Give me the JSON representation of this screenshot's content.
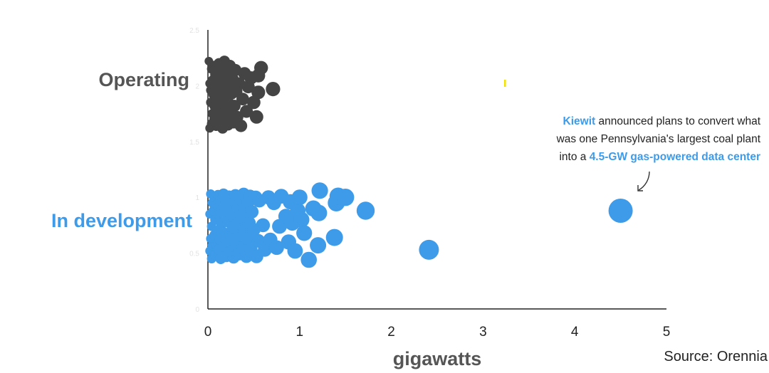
{
  "chart_data": {
    "type": "scatter",
    "title": "",
    "xlabel": "gigawatts",
    "xlim": [
      0,
      5
    ],
    "ylim": [
      0,
      2.5
    ],
    "x_ticks": [
      "0",
      "1",
      "2",
      "3",
      "4",
      "5"
    ],
    "y_ticks": [
      "0",
      "0.5",
      "1",
      "1.5",
      "2",
      "2.5"
    ],
    "grid": false,
    "source": "Source: Orennia",
    "colors": {
      "Operating": "#444444",
      "In development": "#3d9be9",
      "annotation_highlight": "#3d9be9"
    },
    "annotation": {
      "line1_highlight": "Kiewit",
      "line1_rest": " announced plans to convert what",
      "line2": "was one Pennsylvania's largest coal plant",
      "line3_prefix": "into a ",
      "line3_highlight": "4.5-GW gas-powered data center",
      "points_to": {
        "x": 4.5,
        "y": 0.88
      }
    },
    "series": [
      {
        "name": "Operating",
        "points": [
          [
            0.01,
            2.22
          ],
          [
            0.02,
            2.02
          ],
          [
            0.02,
            1.62
          ],
          [
            0.03,
            1.85
          ],
          [
            0.03,
            1.96
          ],
          [
            0.04,
            2.15
          ],
          [
            0.04,
            1.66
          ],
          [
            0.05,
            2.05
          ],
          [
            0.05,
            1.75
          ],
          [
            0.06,
            1.92
          ],
          [
            0.06,
            2.18
          ],
          [
            0.07,
            1.7
          ],
          [
            0.07,
            1.82
          ],
          [
            0.08,
            1.99
          ],
          [
            0.08,
            2.1
          ],
          [
            0.09,
            1.64
          ],
          [
            0.09,
            1.89
          ],
          [
            0.1,
            2.13
          ],
          [
            0.1,
            1.78
          ],
          [
            0.11,
            1.95
          ],
          [
            0.12,
            2.2
          ],
          [
            0.12,
            1.68
          ],
          [
            0.13,
            1.86
          ],
          [
            0.13,
            2.03
          ],
          [
            0.14,
            1.73
          ],
          [
            0.15,
            2.16
          ],
          [
            0.15,
            1.92
          ],
          [
            0.16,
            1.62
          ],
          [
            0.17,
            2.08
          ],
          [
            0.17,
            1.8
          ],
          [
            0.18,
            2.22
          ],
          [
            0.19,
            1.97
          ],
          [
            0.19,
            1.7
          ],
          [
            0.2,
            1.88
          ],
          [
            0.21,
            2.12
          ],
          [
            0.22,
            1.65
          ],
          [
            0.22,
            2.0
          ],
          [
            0.23,
            1.84
          ],
          [
            0.24,
            2.18
          ],
          [
            0.25,
            1.74
          ],
          [
            0.26,
            1.93
          ],
          [
            0.27,
            2.06
          ],
          [
            0.28,
            1.67
          ],
          [
            0.29,
            1.82
          ],
          [
            0.3,
            2.14
          ],
          [
            0.31,
            1.95
          ],
          [
            0.32,
            1.72
          ],
          [
            0.34,
            2.02
          ],
          [
            0.36,
            1.64
          ],
          [
            0.38,
            1.88
          ],
          [
            0.4,
            2.11
          ],
          [
            0.42,
            1.77
          ],
          [
            0.44,
            1.99
          ],
          [
            0.47,
            2.07
          ],
          [
            0.5,
            1.85
          ],
          [
            0.53,
            1.72
          ],
          [
            0.55,
            1.94
          ],
          [
            0.58,
            2.16
          ],
          [
            0.55,
            2.09
          ],
          [
            0.71,
            1.97
          ]
        ]
      },
      {
        "name": "In development",
        "points": [
          [
            0.02,
            0.52
          ],
          [
            0.02,
            0.85
          ],
          [
            0.03,
            0.63
          ],
          [
            0.03,
            1.03
          ],
          [
            0.04,
            0.45
          ],
          [
            0.04,
            0.74
          ],
          [
            0.05,
            0.95
          ],
          [
            0.05,
            0.57
          ],
          [
            0.06,
            0.88
          ],
          [
            0.07,
            0.66
          ],
          [
            0.07,
            1.0
          ],
          [
            0.08,
            0.48
          ],
          [
            0.08,
            0.8
          ],
          [
            0.09,
            0.58
          ],
          [
            0.1,
            0.93
          ],
          [
            0.1,
            0.7
          ],
          [
            0.11,
            1.02
          ],
          [
            0.12,
            0.53
          ],
          [
            0.12,
            0.84
          ],
          [
            0.13,
            0.62
          ],
          [
            0.14,
            0.97
          ],
          [
            0.14,
            0.45
          ],
          [
            0.15,
            0.76
          ],
          [
            0.16,
            0.9
          ],
          [
            0.17,
            0.56
          ],
          [
            0.17,
            1.03
          ],
          [
            0.18,
            0.68
          ],
          [
            0.19,
            0.83
          ],
          [
            0.2,
            0.47
          ],
          [
            0.2,
            0.96
          ],
          [
            0.21,
            0.6
          ],
          [
            0.22,
            0.78
          ],
          [
            0.23,
            1.01
          ],
          [
            0.24,
            0.51
          ],
          [
            0.24,
            0.88
          ],
          [
            0.25,
            0.65
          ],
          [
            0.26,
            0.94
          ],
          [
            0.27,
            0.73
          ],
          [
            0.28,
            0.46
          ],
          [
            0.29,
            0.85
          ],
          [
            0.3,
            1.02
          ],
          [
            0.31,
            0.58
          ],
          [
            0.32,
            0.76
          ],
          [
            0.33,
            0.91
          ],
          [
            0.34,
            0.49
          ],
          [
            0.35,
            0.66
          ],
          [
            0.36,
            0.98
          ],
          [
            0.37,
            0.82
          ],
          [
            0.38,
            0.55
          ],
          [
            0.39,
            1.03
          ],
          [
            0.4,
            0.7
          ],
          [
            0.41,
            0.89
          ],
          [
            0.42,
            0.47
          ],
          [
            0.43,
            0.63
          ],
          [
            0.44,
            0.96
          ],
          [
            0.45,
            0.77
          ],
          [
            0.46,
            1.01
          ],
          [
            0.47,
            0.53
          ],
          [
            0.48,
            0.87
          ],
          [
            0.5,
            0.71
          ],
          [
            0.52,
            1.0
          ],
          [
            0.53,
            0.47
          ],
          [
            0.55,
            0.61
          ],
          [
            0.56,
            0.97
          ],
          [
            0.6,
            0.75
          ],
          [
            0.62,
            0.53
          ],
          [
            0.66,
            1.0
          ],
          [
            0.68,
            0.62
          ],
          [
            0.72,
            0.95
          ],
          [
            0.75,
            0.55
          ],
          [
            0.78,
            0.74
          ],
          [
            0.8,
            1.01
          ],
          [
            0.85,
            0.83
          ],
          [
            0.88,
            0.6
          ],
          [
            0.9,
            0.96
          ],
          [
            0.92,
            0.77
          ],
          [
            0.95,
            0.52
          ],
          [
            0.98,
            0.88
          ],
          [
            1.0,
            1.0
          ],
          [
            1.02,
            0.8
          ],
          [
            1.05,
            0.68
          ],
          [
            1.1,
            0.44
          ],
          [
            1.15,
            0.9
          ],
          [
            1.2,
            0.57
          ],
          [
            1.21,
            0.86
          ],
          [
            1.22,
            1.06
          ],
          [
            1.38,
            0.64
          ],
          [
            1.4,
            0.95
          ],
          [
            1.42,
            1.01
          ],
          [
            1.5,
            1.0
          ],
          [
            1.72,
            0.88
          ],
          [
            2.41,
            0.53
          ],
          [
            4.5,
            0.88
          ]
        ]
      }
    ]
  },
  "labels": {
    "operating": "Operating",
    "in_development": "In development"
  },
  "decor": {
    "yellow_mark_color": "#f2e200"
  }
}
